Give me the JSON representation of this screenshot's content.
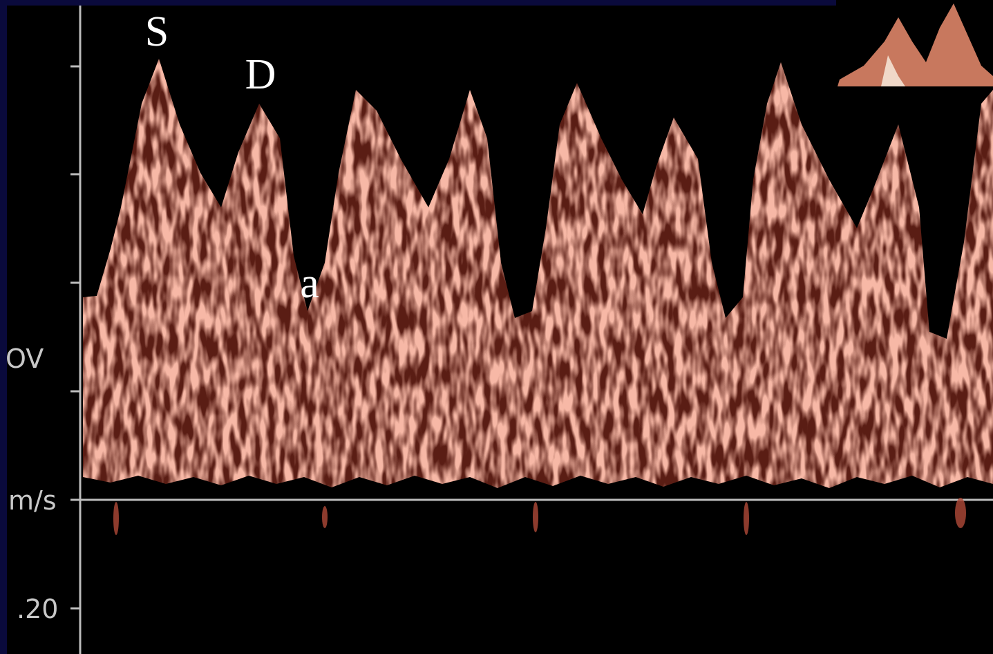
{
  "annotations": {
    "systolic": "S",
    "diastolic": "D",
    "atrial": "a"
  },
  "axis_labels": [
    "OV",
    "m/s",
    ".20"
  ]
}
